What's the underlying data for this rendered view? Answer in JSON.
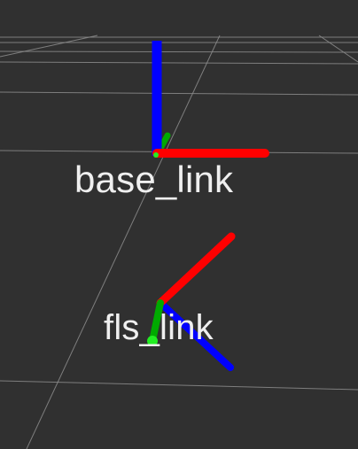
{
  "viewport": {
    "background_color": "#303030",
    "grid_color": "#8c8c8c"
  },
  "axis_colors": {
    "x": "#ff0000",
    "y": "#00aa00",
    "z": "#0000ff",
    "origin": "#22ee22"
  },
  "frames": [
    {
      "name": "base_link"
    },
    {
      "name": "fls_link"
    }
  ]
}
